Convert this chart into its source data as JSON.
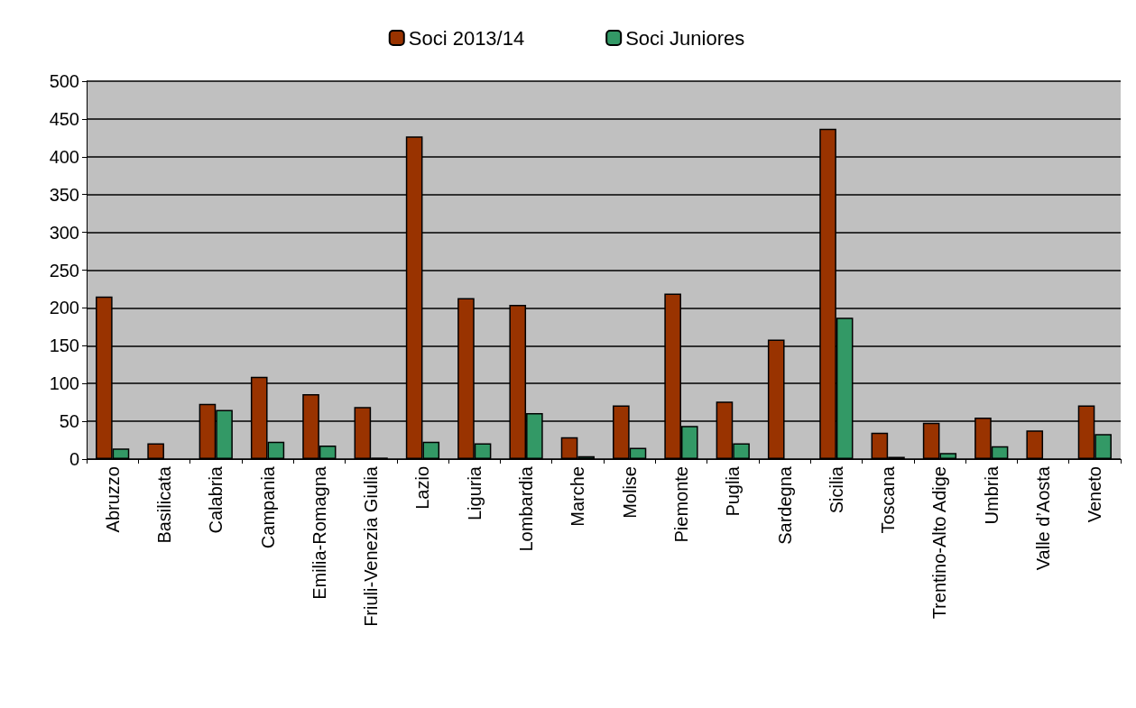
{
  "chart_data": {
    "type": "bar",
    "categories": [
      "Abruzzo",
      "Basilicata",
      "Calabria",
      "Campania",
      "Emilia-Romagna",
      "Friuli-Venezia Giulia",
      "Lazio",
      "Liguria",
      "Lombardia",
      "Marche",
      "Molise",
      "Piemonte",
      "Puglia",
      "Sardegna",
      "Sicilia",
      "Toscana",
      "Trentino-Alto Adige",
      "Umbria",
      "Valle d’Aosta",
      "Veneto"
    ],
    "series": [
      {
        "name": "Soci 2013/14",
        "color": "#993300",
        "values": [
          215,
          21,
          73,
          109,
          86,
          69,
          427,
          213,
          204,
          29,
          71,
          219,
          76,
          158,
          437,
          35,
          48,
          55,
          38,
          71
        ]
      },
      {
        "name": "Soci Juniores",
        "color": "#339966",
        "values": [
          14,
          0,
          65,
          23,
          18,
          2,
          23,
          21,
          61,
          4,
          15,
          44,
          21,
          0,
          187,
          3,
          8,
          17,
          0,
          33
        ]
      }
    ],
    "ylim": [
      0,
      500
    ],
    "yticks": [
      0,
      50,
      100,
      150,
      200,
      250,
      300,
      350,
      400,
      450,
      500
    ],
    "grid": "y",
    "legend": "top"
  }
}
